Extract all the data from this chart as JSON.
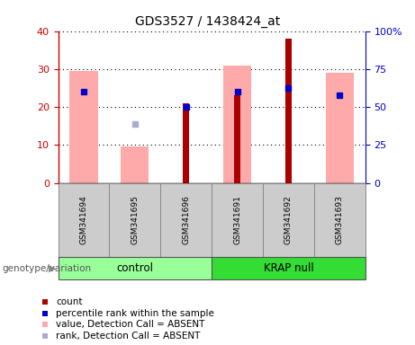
{
  "title": "GDS3527 / 1438424_at",
  "samples": [
    "GSM341694",
    "GSM341695",
    "GSM341696",
    "GSM341691",
    "GSM341692",
    "GSM341693"
  ],
  "left_ylim": [
    0,
    40
  ],
  "right_ylim": [
    0,
    100
  ],
  "left_yticks": [
    0,
    10,
    20,
    30,
    40
  ],
  "right_yticks": [
    0,
    25,
    50,
    75,
    100
  ],
  "right_yticklabels": [
    "0",
    "25",
    "50",
    "75",
    "100%"
  ],
  "bars": {
    "count": {
      "GSM341694": null,
      "GSM341695": null,
      "GSM341696": 21,
      "GSM341691": 23,
      "GSM341692": 38,
      "GSM341693": null
    },
    "percentile_rank": {
      "GSM341694": 24,
      "GSM341695": null,
      "GSM341696": 20,
      "GSM341691": 24,
      "GSM341692": 25,
      "GSM341693": 23
    },
    "value_absent": {
      "GSM341694": 29.5,
      "GSM341695": 9.5,
      "GSM341696": null,
      "GSM341691": 31,
      "GSM341692": null,
      "GSM341693": 29
    },
    "rank_absent": {
      "GSM341694": null,
      "GSM341695": 15.5,
      "GSM341696": null,
      "GSM341691": null,
      "GSM341692": null,
      "GSM341693": null
    }
  },
  "colors": {
    "count": "#aa0000",
    "percentile_rank": "#0000cc",
    "value_absent": "#ffaaaa",
    "rank_absent": "#aaaacc",
    "control_bg": "#99ff99",
    "krap_bg": "#33dd33",
    "sample_box_bg": "#cccccc",
    "left_axis_color": "#cc0000",
    "right_axis_color": "#0000cc"
  },
  "legend_items": [
    {
      "label": "count",
      "color": "#aa0000"
    },
    {
      "label": "percentile rank within the sample",
      "color": "#0000cc"
    },
    {
      "label": "value, Detection Call = ABSENT",
      "color": "#ffaaaa"
    },
    {
      "label": "rank, Detection Call = ABSENT",
      "color": "#aaaacc"
    }
  ],
  "group_defs": [
    {
      "name": "control",
      "start": 0,
      "end": 3,
      "color": "#99ff99"
    },
    {
      "name": "KRAP null",
      "start": 3,
      "end": 6,
      "color": "#33dd33"
    }
  ]
}
